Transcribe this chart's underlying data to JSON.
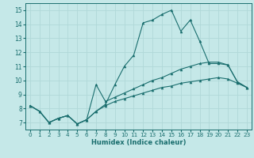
{
  "xlabel": "Humidex (Indice chaleur)",
  "xlim": [
    -0.5,
    23.5
  ],
  "ylim": [
    6.5,
    15.5
  ],
  "xticks": [
    0,
    1,
    2,
    3,
    4,
    5,
    6,
    7,
    8,
    9,
    10,
    11,
    12,
    13,
    14,
    15,
    16,
    17,
    18,
    19,
    20,
    21,
    22,
    23
  ],
  "yticks": [
    7,
    8,
    9,
    10,
    11,
    12,
    13,
    14,
    15
  ],
  "background_color": "#c5e8e8",
  "grid_color": "#b0d8d8",
  "line_color": "#1a6e6e",
  "lines": [
    {
      "x": [
        0,
        1,
        2,
        3,
        4,
        5,
        6,
        7,
        8,
        9,
        10,
        11,
        12,
        13,
        14,
        15,
        16,
        17,
        18,
        19,
        20,
        21,
        22,
        23
      ],
      "y": [
        8.2,
        7.8,
        7.0,
        7.3,
        7.5,
        6.9,
        7.2,
        7.8,
        8.3,
        9.7,
        11.0,
        11.8,
        14.1,
        14.3,
        14.7,
        15.0,
        13.5,
        14.3,
        12.8,
        11.2,
        11.2,
        11.1,
        9.9,
        9.5
      ]
    },
    {
      "x": [
        0,
        1,
        2,
        3,
        4,
        5,
        6,
        7,
        8,
        9,
        10,
        11,
        12,
        13,
        14,
        15,
        16,
        17,
        18,
        19,
        20,
        21,
        22,
        23
      ],
      "y": [
        8.2,
        7.8,
        7.0,
        7.3,
        7.5,
        6.9,
        7.2,
        9.7,
        8.5,
        8.8,
        9.1,
        9.4,
        9.7,
        10.0,
        10.2,
        10.5,
        10.8,
        11.0,
        11.2,
        11.3,
        11.3,
        11.1,
        9.9,
        9.5
      ]
    },
    {
      "x": [
        0,
        1,
        2,
        3,
        4,
        5,
        6,
        7,
        8,
        9,
        10,
        11,
        12,
        13,
        14,
        15,
        16,
        17,
        18,
        19,
        20,
        21,
        22,
        23
      ],
      "y": [
        8.2,
        7.8,
        7.0,
        7.3,
        7.5,
        6.9,
        7.2,
        7.8,
        8.2,
        8.5,
        8.7,
        8.9,
        9.1,
        9.3,
        9.5,
        9.6,
        9.8,
        9.9,
        10.0,
        10.1,
        10.2,
        10.1,
        9.8,
        9.5
      ]
    }
  ]
}
